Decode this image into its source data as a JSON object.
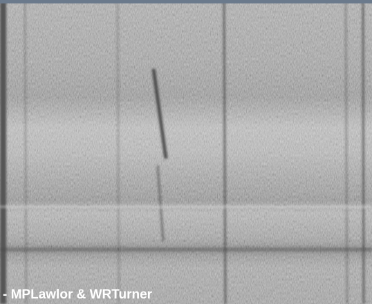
{
  "caption": "- MPLawlor & WRTurner"
}
